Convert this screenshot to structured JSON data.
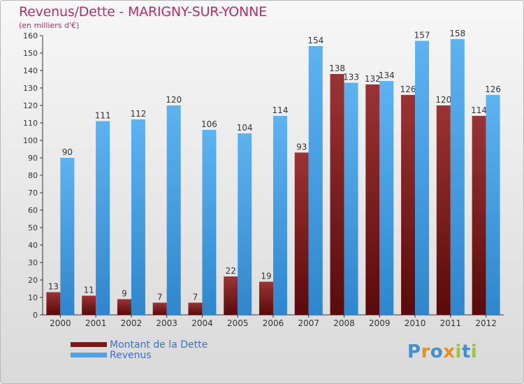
{
  "header": {
    "title": "Revenus/Dette - MARIGNY-SUR-YONNE",
    "subtitle": "(en milliers d'€)"
  },
  "legend": {
    "items": [
      {
        "label": "Montant de la Dette",
        "color": "#7a1a1a"
      },
      {
        "label": "Revenus",
        "color": "#4aa3e6"
      }
    ]
  },
  "logo": {
    "text": "Proxiti",
    "colors": [
      "#3d8fd6",
      "#e8901c",
      "#3d8fd6",
      "#e8901c",
      "#9bc53d",
      "#3d8fd6",
      "#9bc53d"
    ]
  },
  "chart_data": {
    "type": "bar",
    "title": "Revenus/Dette - MARIGNY-SUR-YONNE",
    "subtitle": "(en milliers d'€)",
    "xlabel": "",
    "ylabel": "",
    "categories": [
      "2000",
      "2001",
      "2002",
      "2003",
      "2004",
      "2005",
      "2006",
      "2007",
      "2008",
      "2009",
      "2010",
      "2011",
      "2012"
    ],
    "series": [
      {
        "name": "Montant de la Dette",
        "color": "#7a1a1a",
        "values": [
          13,
          11,
          9,
          7,
          7,
          22,
          19,
          93,
          138,
          132,
          126,
          120,
          114
        ]
      },
      {
        "name": "Revenus",
        "color": "#4aa3e6",
        "values": [
          90,
          111,
          112,
          120,
          106,
          104,
          114,
          154,
          133,
          134,
          157,
          158,
          126
        ]
      }
    ],
    "ylim": [
      0,
      160
    ],
    "yticks": [
      0,
      10,
      20,
      30,
      40,
      50,
      60,
      70,
      80,
      90,
      100,
      110,
      120,
      130,
      140,
      150,
      160
    ],
    "grid": false,
    "legend": "bottom-left"
  }
}
